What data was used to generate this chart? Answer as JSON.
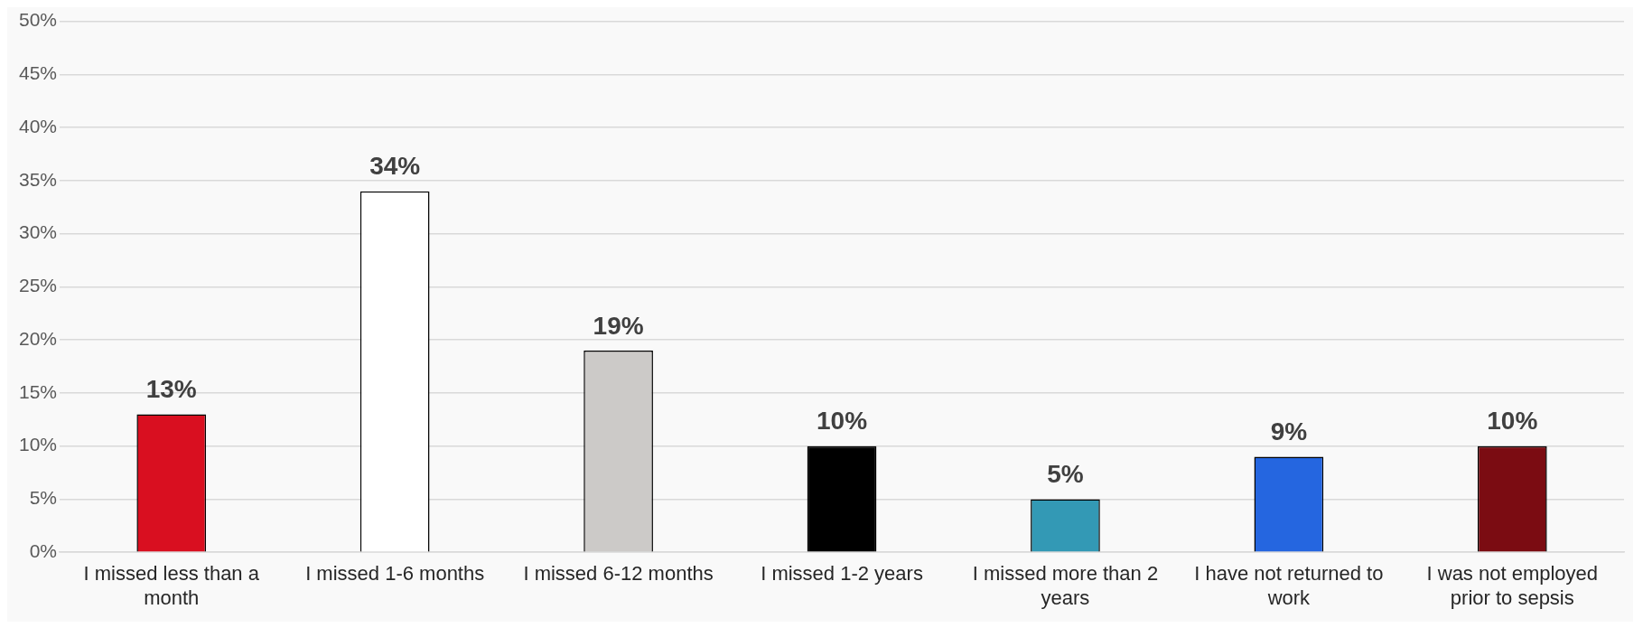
{
  "chart_data": {
    "type": "bar",
    "categories": [
      "I missed less than a month",
      "I missed 1-6 months",
      "I missed 6-12 months",
      "I missed 1-2 years",
      "I missed more than 2 years",
      "I have not returned to work",
      "I was not employed prior to sepsis"
    ],
    "values": [
      13,
      34,
      19,
      10,
      5,
      9,
      10
    ],
    "colors": [
      "#d90f20",
      "#ffffff",
      "#cccac8",
      "#000000",
      "#3399b5",
      "#2566e0",
      "#7b0c12"
    ],
    "value_labels": [
      "13%",
      "34%",
      "19%",
      "10%",
      "5%",
      "9%",
      "10%"
    ],
    "ylim": [
      0,
      50
    ],
    "yticks": [
      {
        "value": 0,
        "label": "0%"
      },
      {
        "value": 5,
        "label": "5%"
      },
      {
        "value": 10,
        "label": "10%"
      },
      {
        "value": 15,
        "label": "15%"
      },
      {
        "value": 20,
        "label": "20%"
      },
      {
        "value": 25,
        "label": "25%"
      },
      {
        "value": 30,
        "label": "30%"
      },
      {
        "value": 35,
        "label": "35%"
      },
      {
        "value": 40,
        "label": "40%"
      },
      {
        "value": 45,
        "label": "45%"
      },
      {
        "value": 50,
        "label": "50%"
      }
    ],
    "grid": "y",
    "legend": false
  }
}
